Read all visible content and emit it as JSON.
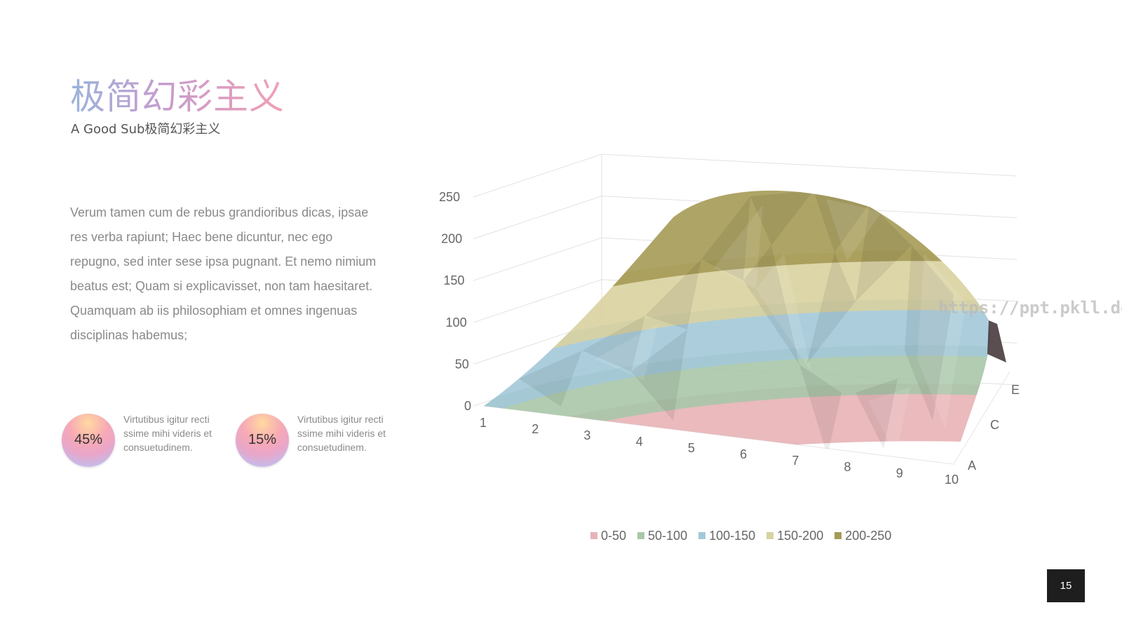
{
  "title": "极简幻彩主义",
  "subtitle": "A Good Sub极简幻彩主义",
  "body": "Verum tamen cum de rebus grandioribus dicas, ipsae res verba rapiunt; Haec bene dicuntur, nec ego repugno, sed inter sese ipsa pugnant. Et nemo nimium beatus est; Quam si explicavisset, non tam haesitaret. Quamquam ab iis philosophiam et omnes ingenuas disciplinas habemus;",
  "stats": [
    {
      "value": "45%",
      "text": "Virtutibus igitur recti ssime mihi videris et consuetudinem."
    },
    {
      "value": "15%",
      "text": "Virtutibus igitur recti ssime mihi videris et consuetudinem."
    }
  ],
  "watermark": "https://ppt.pkll.de",
  "page_number": "15",
  "chart_data": {
    "type": "surface",
    "x": [
      "1",
      "2",
      "3",
      "4",
      "5",
      "6",
      "7",
      "8",
      "9",
      "10"
    ],
    "series_labels_shown": [
      "A",
      "C",
      "E"
    ],
    "z_ticks": [
      "0",
      "50",
      "100",
      "150",
      "200",
      "250"
    ],
    "zlim": [
      0,
      250
    ],
    "bands": [
      {
        "name": "0-50",
        "color": "#e8b3b6"
      },
      {
        "name": "50-100",
        "color": "#a9c7a8"
      },
      {
        "name": "100-150",
        "color": "#a3c9d8"
      },
      {
        "name": "150-200",
        "color": "#d9d2a0"
      },
      {
        "name": "200-250",
        "color": "#a59a55"
      }
    ],
    "legend_position": "bottom",
    "grid": true
  }
}
